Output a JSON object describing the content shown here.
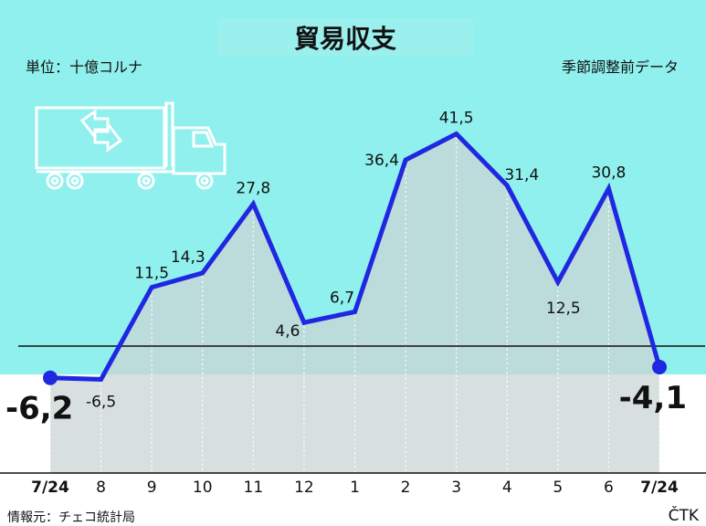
{
  "title": "貿易収支",
  "unit_note": "単位：十億コルナ",
  "seasonal_note": "季節調整前データ",
  "source_note": "情報元：チェコ統計局",
  "agency": "ČTK",
  "colors": {
    "background_top": "#8ff0ed",
    "area_fill": "#cbd4d4",
    "line": "#1f28e0",
    "baseline": "#111111",
    "truck_outline": "#ffffff"
  },
  "icon": "truck-icon",
  "chart_data": {
    "type": "line",
    "categories": [
      "7/24",
      "8",
      "9",
      "10",
      "11",
      "12",
      "1",
      "2",
      "3",
      "4",
      "5",
      "6",
      "7/24"
    ],
    "values": [
      -6.2,
      -6.5,
      11.5,
      14.3,
      27.8,
      4.6,
      6.7,
      36.4,
      41.5,
      31.4,
      12.5,
      30.8,
      -4.1
    ],
    "labels": [
      "-6,2",
      "-6,5",
      "11,5",
      "14,3",
      "27,8",
      "4,6",
      "6,7",
      "36,4",
      "41,5",
      "31,4",
      "12,5",
      "30,8",
      "-4,1"
    ],
    "ylim": [
      -15,
      42
    ],
    "xlabel": "",
    "ylabel": "",
    "grid": true
  }
}
